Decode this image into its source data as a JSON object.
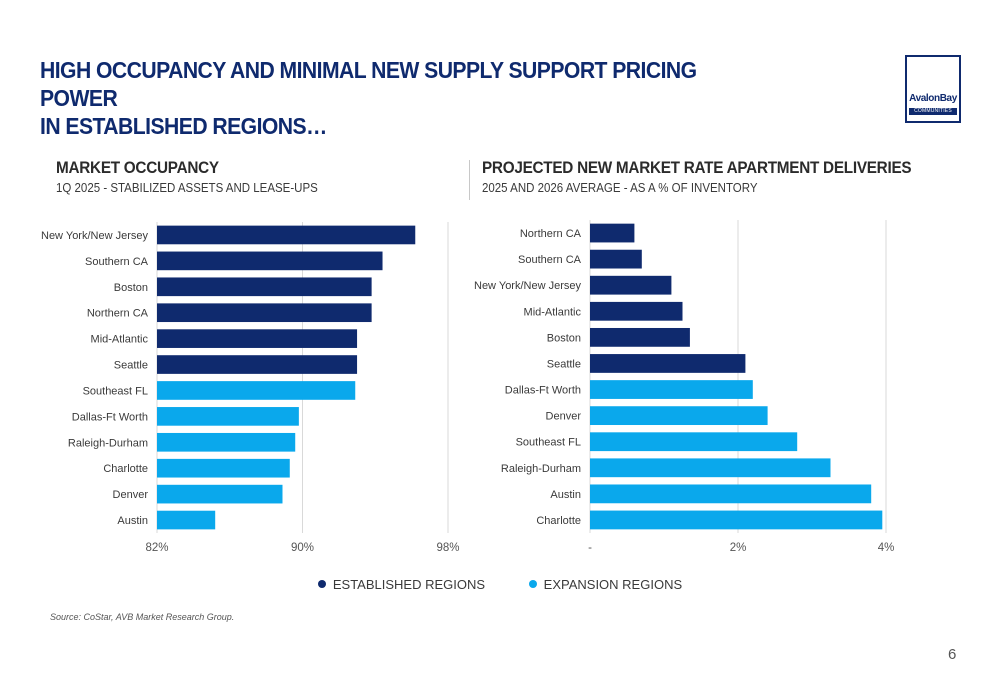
{
  "slide": {
    "title_line1": "HIGH OCCUPANCY AND MINIMAL NEW SUPPLY SUPPORT PRICING POWER",
    "title_line2": "IN ESTABLISHED REGIONS…",
    "logo": {
      "name": "AvalonBay",
      "sub": "COMMUNITIES"
    },
    "source": "Source:  CoStar, AVB Market Research Group.",
    "page_number": "6"
  },
  "colors": {
    "established": "#0f2a6e",
    "expansion": "#0aa8ec",
    "grid": "#d9d9d9",
    "title": "#0f2a6e"
  },
  "legend": [
    {
      "label": "ESTABLISHED REGIONS",
      "color": "#0f2a6e"
    },
    {
      "label": "EXPANSION REGIONS",
      "color": "#0aa8ec"
    }
  ],
  "chart_data": [
    {
      "type": "bar",
      "orientation": "horizontal",
      "title": "MARKET OCCUPANCY",
      "subtitle": "1Q 2025 - STABILIZED ASSETS AND LEASE-UPS",
      "categories": [
        "New York/New Jersey",
        "Southern CA",
        "Boston",
        "Northern CA",
        "Mid-Atlantic",
        "Seattle",
        "Southeast FL",
        "Dallas-Ft Worth",
        "Raleigh-Durham",
        "Charlotte",
        "Denver",
        "Austin"
      ],
      "values": [
        96.2,
        94.4,
        93.8,
        93.8,
        93.0,
        93.0,
        92.9,
        89.8,
        89.6,
        89.3,
        88.9,
        85.2
      ],
      "groups": [
        "established",
        "established",
        "established",
        "established",
        "established",
        "established",
        "expansion",
        "expansion",
        "expansion",
        "expansion",
        "expansion",
        "expansion"
      ],
      "xlim": [
        82,
        98
      ],
      "ticks": [
        82,
        90,
        98
      ],
      "tick_labels": [
        "82%",
        "90%",
        "98%"
      ],
      "grid": true
    },
    {
      "type": "bar",
      "orientation": "horizontal",
      "title": "PROJECTED NEW MARKET RATE APARTMENT DELIVERIES",
      "subtitle": "2025 AND 2026 AVERAGE - AS A % OF INVENTORY",
      "categories": [
        "Northern CA",
        "Southern CA",
        "New York/New Jersey",
        "Mid-Atlantic",
        "Boston",
        "Seattle",
        "Dallas-Ft Worth",
        "Denver",
        "Southeast FL",
        "Raleigh-Durham",
        "Austin",
        "Charlotte"
      ],
      "values": [
        0.6,
        0.7,
        1.1,
        1.25,
        1.35,
        2.1,
        2.2,
        2.4,
        2.8,
        3.25,
        3.8,
        3.95
      ],
      "groups": [
        "established",
        "established",
        "established",
        "established",
        "established",
        "established",
        "expansion",
        "expansion",
        "expansion",
        "expansion",
        "expansion",
        "expansion"
      ],
      "xlim": [
        0,
        4
      ],
      "ticks": [
        0,
        2,
        4
      ],
      "tick_labels": [
        "-",
        "2%",
        "4%"
      ],
      "grid": true
    }
  ]
}
